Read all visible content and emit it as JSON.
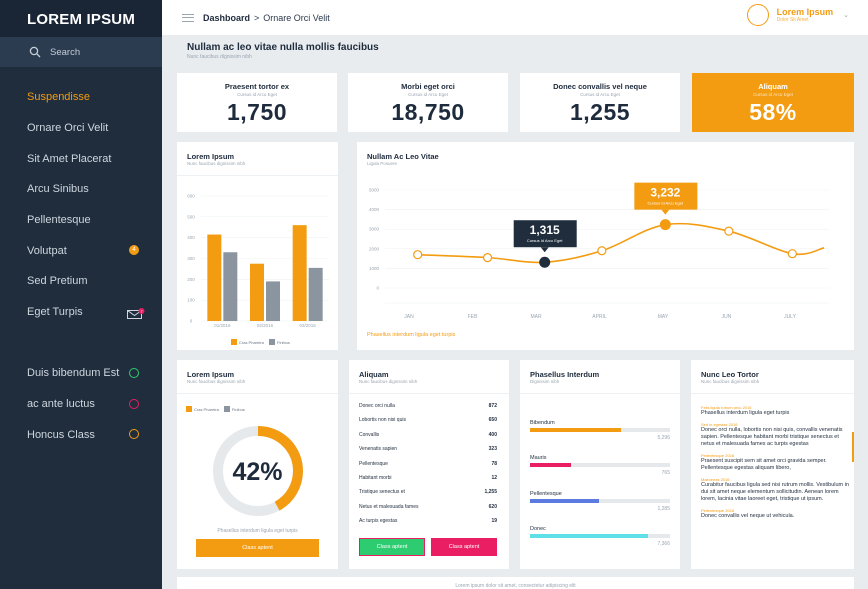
{
  "app": {
    "title": "LOREM IPSUM"
  },
  "search": {
    "placeholder": "Search"
  },
  "sidebar": {
    "items": [
      {
        "label": "Suspendisse",
        "active": true
      },
      {
        "label": "Ornare Orci Velit"
      },
      {
        "label": "Sit Amet Placerat"
      },
      {
        "label": "Arcu Sinibus"
      },
      {
        "label": "Pellentesque"
      },
      {
        "label": "Volutpat",
        "badge": "4"
      },
      {
        "label": "Sed Pretium"
      },
      {
        "label": "Eget Turpis",
        "icon": "mail-icon",
        "badge": "7"
      }
    ],
    "secondary": [
      {
        "label": "Duis bibendum Est",
        "color": "#2ecc71"
      },
      {
        "label": "ac ante luctus",
        "color": "#e91e63"
      },
      {
        "label": "Honcus Class",
        "color": "#f39c12"
      }
    ]
  },
  "topbar": {
    "breadcrumb_root": "Dashboard",
    "breadcrumb_sep": ">",
    "breadcrumb_current": "Ornare Orci Velit",
    "user_name": "Lorem Ipsum",
    "user_sub": "Dolor Sit Amet"
  },
  "page": {
    "title": "Nullam ac leo vitae nulla mollis faucibus",
    "subtitle": "Nunc faucibus dignissim nibh"
  },
  "stats": [
    {
      "title": "Praesent tortor ex",
      "sub": "Cursus id Arcu Eget",
      "value": "1,750"
    },
    {
      "title": "Morbi eget orci",
      "sub": "Cursus id Arcu Eget",
      "value": "18,750"
    },
    {
      "title": "Donec convallis vel neque",
      "sub": "Cursus id Arcu Eget",
      "value": "1,255"
    },
    {
      "title": "Aliquam",
      "sub": "Cursus id Arcu Eget",
      "value": "58%",
      "highlight": true
    }
  ],
  "colors": {
    "accent": "#f39c12",
    "gray": "#8a959f",
    "navy": "#1f2d3d",
    "green": "#2ecc71",
    "pink": "#e91e63",
    "blue": "#5b7be0",
    "cyan": "#5ee0e8"
  },
  "bar_card": {
    "title": "Lorem Ipsum",
    "subtitle": "Nunc faucibus dignissim nibh"
  },
  "line_card": {
    "title": "Nullam Ac Leo Vitae",
    "subtitle": "Ligula Posuere",
    "footer": "Phasellus interdum ligula eget turpis"
  },
  "chart_data": [
    {
      "type": "bar",
      "categories": [
        "01/2016",
        "02/2016",
        "03/2016"
      ],
      "series": [
        {
          "name": "Cras Pharetra",
          "values": [
            415,
            275,
            460
          ]
        },
        {
          "name": "Finibus",
          "values": [
            330,
            190,
            255
          ]
        }
      ],
      "ylim": [
        0,
        600
      ],
      "yticks": [
        "0",
        "100",
        "200",
        "300",
        "400",
        "500",
        "600"
      ],
      "legend": "bottom"
    },
    {
      "type": "line",
      "categories": [
        "JAN",
        "FEB",
        "MAR",
        "APRIL",
        "MAY",
        "JUN",
        "JULY"
      ],
      "x": [
        0.2,
        1.3,
        2.2,
        3.1,
        4.1,
        5.1,
        6.1,
        6.6
      ],
      "y": [
        1700,
        1550,
        1315,
        1900,
        3232,
        2900,
        1750,
        2050
      ],
      "ylim": [
        0,
        5000
      ],
      "yticks": [
        "0",
        "1000",
        "2000",
        "3000",
        "4000",
        "5000"
      ],
      "callouts": [
        {
          "value": "1,315",
          "label": "Cursus Id Arcu Eget",
          "point": 2,
          "color": "#1f2d3d"
        },
        {
          "value": "3,232",
          "label": "Cursus Id Arcu Eget",
          "point": 4,
          "color": "#f39c12"
        }
      ]
    },
    {
      "type": "pie",
      "values": [
        42,
        58
      ],
      "labels": [
        "Cras Pharetra",
        "Finibus"
      ],
      "center_text": "42%",
      "legend": "top-left"
    }
  ],
  "donut_card": {
    "title": "Lorem Ipsum",
    "subtitle": "Nunc faucibus dignissim nibh",
    "legend": [
      "Cras Pharetra",
      "Finibus"
    ],
    "value": "42%",
    "caption": "Phasellus interdum ligula eget turpis",
    "button": "Class aptent"
  },
  "list_card": {
    "title": "Aliquam",
    "subtitle": "Nunc faucibus dignissim nibh",
    "rows": [
      {
        "label": "Donec orci nulla",
        "value": "872"
      },
      {
        "label": "Lobortis non nisi quis",
        "value": "650"
      },
      {
        "label": "Convallis",
        "value": "400"
      },
      {
        "label": "Venenatis sapien",
        "value": "323"
      },
      {
        "label": "Pellentesque",
        "value": "78"
      },
      {
        "label": "Habitant morbi",
        "value": "12"
      },
      {
        "label": "Tristique senectus et",
        "value": "1,255"
      },
      {
        "label": "Netus et malesuada fames",
        "value": "620"
      },
      {
        "label": "Ac turpis egestas",
        "value": "19"
      }
    ],
    "button_green": "Class aptent",
    "button_pink": "Class aptent"
  },
  "progress_card": {
    "title": "Phasellus Interdum",
    "subtitle": "Dignissim nibh",
    "bars": [
      {
        "label": "Bibendum",
        "value": "5,296",
        "fraction": 0.65,
        "color": "#f39c12"
      },
      {
        "label": "Mauris",
        "value": "765",
        "fraction": 0.29,
        "color": "#e91e63"
      },
      {
        "label": "Pellentesque",
        "value": "1,285",
        "fraction": 0.49,
        "color": "#5b7be0"
      },
      {
        "label": "Donec",
        "value": "7,366",
        "fraction": 0.84,
        "color": "#5ee0e8"
      }
    ]
  },
  "feed_card": {
    "title": "Nunc Leo Tortor",
    "subtitle": "Nunc faucibus dignissim nibh",
    "items": [
      {
        "date": "Felis ligula rutrum arcu 2016",
        "text": "Phasellus interdum ligula eget turpis"
      },
      {
        "date": "Sed in egestas 2016",
        "text": "Donec orci nulla, lobortis non nisi quis, convallis venenatis sapien. Pellentesque habitant morbi tristique senectus et netus et malesuada fames ac turpis egestas"
      },
      {
        "date": "Pellentesque 2016",
        "text": "Praesent suscipit sem sit amet orci gravida semper. Pellentesque egestas aliquam libero,"
      },
      {
        "date": "Maecenas 2016",
        "text": "Curabitur faucibus ligula sed nisi rutrum mollis. Vestibulum in dui sit amet neque elementum sollicitudin. Aenean lorem lorem, lacinia vitae laoreet eget, tristique ut ipsum."
      },
      {
        "date": "Pellentesque 2016",
        "text": "Donec convallis vel neque ut vehicula."
      }
    ]
  },
  "footer": {
    "text": "Lorem ipsum dolor sit amet, consectetur adipiscing elit"
  }
}
